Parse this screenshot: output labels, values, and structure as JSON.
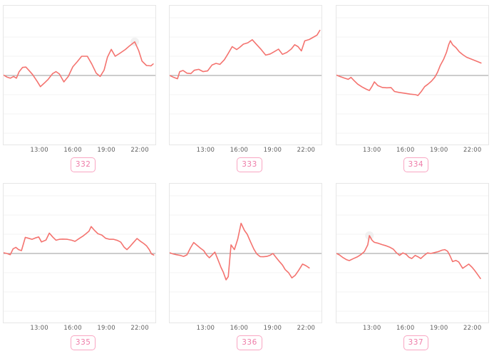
{
  "style": {
    "background": "#ffffff",
    "line_color": "#f4736f",
    "baseline_color": "#999999",
    "grid_color": "#f3f3f3",
    "box_border_color": "#e6e6e6",
    "tick_label_color": "#5f5f5f",
    "badge_border_color": "#f9a6c3",
    "badge_text_color": "#ee7ca8",
    "halo_color": "#e9e9e9"
  },
  "axis": {
    "x_tick_labels": [
      "13:00",
      "16:00",
      "19:00",
      "22:00"
    ],
    "x_tick_hours": [
      13,
      16,
      19,
      22
    ],
    "x_domain_hours": [
      9.8,
      23.4
    ],
    "y_domain_units": [
      -3.59,
      3.63
    ],
    "baseline_value": 0,
    "gridline_units": [
      3,
      2,
      1,
      -1,
      -2,
      -3
    ],
    "grid_on": true,
    "y_tick_labels": []
  },
  "chart_data": [
    {
      "label": "332",
      "type": "line",
      "points": [
        [
          9.8,
          0.02
        ],
        [
          10.1,
          -0.08
        ],
        [
          10.4,
          -0.14
        ],
        [
          10.7,
          -0.05
        ],
        [
          10.95,
          -0.14
        ],
        [
          11.2,
          0.2
        ],
        [
          11.5,
          0.42
        ],
        [
          11.8,
          0.44
        ],
        [
          12.1,
          0.25
        ],
        [
          12.4,
          0.05
        ],
        [
          12.8,
          -0.3
        ],
        [
          13.1,
          -0.58
        ],
        [
          13.4,
          -0.42
        ],
        [
          13.8,
          -0.2
        ],
        [
          14.2,
          0.1
        ],
        [
          14.5,
          0.2
        ],
        [
          14.8,
          0.08
        ],
        [
          15.2,
          -0.33
        ],
        [
          15.6,
          -0.05
        ],
        [
          16.0,
          0.45
        ],
        [
          16.4,
          0.72
        ],
        [
          16.8,
          1.0
        ],
        [
          17.3,
          1.0
        ],
        [
          17.7,
          0.6
        ],
        [
          18.1,
          0.12
        ],
        [
          18.45,
          -0.05
        ],
        [
          18.8,
          0.28
        ],
        [
          19.1,
          0.95
        ],
        [
          19.45,
          1.36
        ],
        [
          19.8,
          1.0
        ],
        [
          20.2,
          1.15
        ],
        [
          20.7,
          1.35
        ],
        [
          21.1,
          1.55
        ],
        [
          21.55,
          1.75
        ],
        [
          21.9,
          1.3
        ],
        [
          22.2,
          0.75
        ],
        [
          22.6,
          0.52
        ],
        [
          23.0,
          0.5
        ],
        [
          23.2,
          0.6
        ]
      ],
      "halo_point": [
        21.55,
        1.75
      ]
    },
    {
      "label": "333",
      "type": "line",
      "points": [
        [
          9.8,
          0.0
        ],
        [
          10.1,
          -0.08
        ],
        [
          10.5,
          -0.17
        ],
        [
          10.7,
          0.2
        ],
        [
          11.0,
          0.26
        ],
        [
          11.35,
          0.12
        ],
        [
          11.7,
          0.1
        ],
        [
          12.0,
          0.27
        ],
        [
          12.4,
          0.32
        ],
        [
          12.8,
          0.2
        ],
        [
          13.2,
          0.24
        ],
        [
          13.6,
          0.55
        ],
        [
          13.95,
          0.63
        ],
        [
          14.3,
          0.58
        ],
        [
          14.7,
          0.82
        ],
        [
          15.0,
          1.1
        ],
        [
          15.4,
          1.5
        ],
        [
          15.8,
          1.35
        ],
        [
          16.1,
          1.48
        ],
        [
          16.4,
          1.63
        ],
        [
          16.8,
          1.7
        ],
        [
          17.2,
          1.86
        ],
        [
          17.6,
          1.6
        ],
        [
          18.0,
          1.35
        ],
        [
          18.4,
          1.06
        ],
        [
          18.8,
          1.12
        ],
        [
          19.2,
          1.25
        ],
        [
          19.55,
          1.37
        ],
        [
          19.9,
          1.1
        ],
        [
          20.3,
          1.2
        ],
        [
          20.7,
          1.38
        ],
        [
          21.0,
          1.6
        ],
        [
          21.3,
          1.5
        ],
        [
          21.6,
          1.28
        ],
        [
          21.9,
          1.8
        ],
        [
          22.3,
          1.87
        ],
        [
          22.7,
          2.0
        ],
        [
          23.0,
          2.1
        ],
        [
          23.25,
          2.35
        ]
      ],
      "halo_point": null
    },
    {
      "label": "334",
      "type": "line",
      "points": [
        [
          9.8,
          0.02
        ],
        [
          10.1,
          -0.05
        ],
        [
          10.5,
          -0.13
        ],
        [
          10.85,
          -0.2
        ],
        [
          11.1,
          -0.1
        ],
        [
          11.35,
          -0.25
        ],
        [
          11.7,
          -0.45
        ],
        [
          12.1,
          -0.6
        ],
        [
          12.5,
          -0.72
        ],
        [
          12.75,
          -0.78
        ],
        [
          13.0,
          -0.55
        ],
        [
          13.2,
          -0.33
        ],
        [
          13.5,
          -0.52
        ],
        [
          13.9,
          -0.62
        ],
        [
          14.3,
          -0.64
        ],
        [
          14.7,
          -0.63
        ],
        [
          15.0,
          -0.83
        ],
        [
          15.4,
          -0.88
        ],
        [
          15.9,
          -0.92
        ],
        [
          16.4,
          -0.97
        ],
        [
          16.9,
          -1.0
        ],
        [
          17.1,
          -1.04
        ],
        [
          17.4,
          -0.83
        ],
        [
          17.7,
          -0.58
        ],
        [
          18.0,
          -0.45
        ],
        [
          18.3,
          -0.3
        ],
        [
          18.6,
          -0.1
        ],
        [
          18.85,
          0.16
        ],
        [
          19.1,
          0.53
        ],
        [
          19.4,
          0.85
        ],
        [
          19.65,
          1.2
        ],
        [
          19.85,
          1.6
        ],
        [
          20.0,
          1.81
        ],
        [
          20.2,
          1.6
        ],
        [
          20.5,
          1.45
        ],
        [
          20.8,
          1.23
        ],
        [
          21.1,
          1.09
        ],
        [
          21.45,
          0.95
        ],
        [
          21.8,
          0.87
        ],
        [
          22.1,
          0.8
        ],
        [
          22.4,
          0.73
        ],
        [
          22.75,
          0.65
        ]
      ],
      "halo_point": null
    },
    {
      "label": "335",
      "type": "line",
      "points": [
        [
          9.8,
          0.04
        ],
        [
          10.1,
          0.0
        ],
        [
          10.4,
          -0.06
        ],
        [
          10.65,
          0.24
        ],
        [
          10.9,
          0.32
        ],
        [
          11.15,
          0.2
        ],
        [
          11.4,
          0.15
        ],
        [
          11.75,
          0.84
        ],
        [
          12.05,
          0.79
        ],
        [
          12.35,
          0.74
        ],
        [
          12.65,
          0.81
        ],
        [
          12.95,
          0.86
        ],
        [
          13.2,
          0.6
        ],
        [
          13.6,
          0.7
        ],
        [
          13.9,
          1.06
        ],
        [
          14.2,
          0.86
        ],
        [
          14.5,
          0.69
        ],
        [
          14.8,
          0.74
        ],
        [
          15.1,
          0.75
        ],
        [
          15.5,
          0.74
        ],
        [
          15.9,
          0.69
        ],
        [
          16.2,
          0.63
        ],
        [
          16.6,
          0.79
        ],
        [
          16.9,
          0.9
        ],
        [
          17.2,
          1.04
        ],
        [
          17.45,
          1.16
        ],
        [
          17.65,
          1.4
        ],
        [
          17.95,
          1.2
        ],
        [
          18.25,
          1.03
        ],
        [
          18.6,
          0.96
        ],
        [
          18.95,
          0.79
        ],
        [
          19.3,
          0.74
        ],
        [
          19.65,
          0.74
        ],
        [
          20.0,
          0.68
        ],
        [
          20.3,
          0.59
        ],
        [
          20.6,
          0.33
        ],
        [
          20.85,
          0.2
        ],
        [
          21.1,
          0.35
        ],
        [
          21.4,
          0.55
        ],
        [
          21.75,
          0.78
        ],
        [
          22.05,
          0.64
        ],
        [
          22.35,
          0.52
        ],
        [
          22.6,
          0.4
        ],
        [
          22.85,
          0.2
        ],
        [
          23.05,
          -0.02
        ],
        [
          23.25,
          -0.08
        ]
      ],
      "halo_point": null
    },
    {
      "label": "336",
      "type": "line",
      "points": [
        [
          9.8,
          0.04
        ],
        [
          10.1,
          -0.02
        ],
        [
          10.4,
          -0.06
        ],
        [
          10.75,
          -0.1
        ],
        [
          11.05,
          -0.15
        ],
        [
          11.35,
          -0.07
        ],
        [
          11.65,
          0.28
        ],
        [
          11.95,
          0.57
        ],
        [
          12.2,
          0.45
        ],
        [
          12.55,
          0.28
        ],
        [
          12.85,
          0.15
        ],
        [
          13.1,
          -0.07
        ],
        [
          13.35,
          -0.22
        ],
        [
          13.6,
          -0.08
        ],
        [
          13.85,
          0.07
        ],
        [
          14.1,
          -0.28
        ],
        [
          14.4,
          -0.72
        ],
        [
          14.6,
          -0.97
        ],
        [
          14.85,
          -1.37
        ],
        [
          15.05,
          -1.2
        ],
        [
          15.3,
          0.45
        ],
        [
          15.6,
          0.2
        ],
        [
          15.9,
          0.75
        ],
        [
          16.2,
          1.57
        ],
        [
          16.5,
          1.2
        ],
        [
          16.75,
          1.0
        ],
        [
          17.05,
          0.6
        ],
        [
          17.35,
          0.22
        ],
        [
          17.6,
          -0.02
        ],
        [
          17.9,
          -0.16
        ],
        [
          18.2,
          -0.17
        ],
        [
          18.5,
          -0.15
        ],
        [
          18.8,
          -0.09
        ],
        [
          19.05,
          0.0
        ],
        [
          19.35,
          -0.22
        ],
        [
          19.6,
          -0.4
        ],
        [
          19.9,
          -0.6
        ],
        [
          20.15,
          -0.84
        ],
        [
          20.45,
          -1.0
        ],
        [
          20.75,
          -1.27
        ],
        [
          21.05,
          -1.13
        ],
        [
          21.35,
          -0.88
        ],
        [
          21.7,
          -0.55
        ],
        [
          22.0,
          -0.63
        ],
        [
          22.3,
          -0.75
        ]
      ],
      "halo_point": null
    },
    {
      "label": "337",
      "type": "line",
      "points": [
        [
          9.8,
          0.0
        ],
        [
          10.05,
          -0.07
        ],
        [
          10.35,
          -0.2
        ],
        [
          10.7,
          -0.32
        ],
        [
          10.95,
          -0.37
        ],
        [
          11.3,
          -0.27
        ],
        [
          11.65,
          -0.18
        ],
        [
          12.0,
          -0.05
        ],
        [
          12.3,
          0.1
        ],
        [
          12.6,
          0.45
        ],
        [
          12.75,
          0.93
        ],
        [
          13.0,
          0.68
        ],
        [
          13.2,
          0.58
        ],
        [
          13.55,
          0.53
        ],
        [
          13.9,
          0.46
        ],
        [
          14.25,
          0.4
        ],
        [
          14.6,
          0.32
        ],
        [
          14.9,
          0.22
        ],
        [
          15.15,
          0.05
        ],
        [
          15.45,
          -0.1
        ],
        [
          15.75,
          0.03
        ],
        [
          16.05,
          -0.05
        ],
        [
          16.3,
          -0.2
        ],
        [
          16.55,
          -0.26
        ],
        [
          16.85,
          -0.1
        ],
        [
          17.1,
          -0.17
        ],
        [
          17.35,
          -0.26
        ],
        [
          17.7,
          -0.08
        ],
        [
          17.95,
          0.03
        ],
        [
          18.25,
          0.0
        ],
        [
          18.6,
          0.05
        ],
        [
          18.95,
          0.1
        ],
        [
          19.25,
          0.17
        ],
        [
          19.5,
          0.2
        ],
        [
          19.75,
          0.12
        ],
        [
          19.95,
          -0.1
        ],
        [
          20.2,
          -0.42
        ],
        [
          20.5,
          -0.36
        ],
        [
          20.75,
          -0.44
        ],
        [
          21.1,
          -0.77
        ],
        [
          21.4,
          -0.65
        ],
        [
          21.65,
          -0.55
        ],
        [
          21.95,
          -0.72
        ],
        [
          22.2,
          -0.9
        ],
        [
          22.45,
          -1.1
        ],
        [
          22.7,
          -1.3
        ]
      ],
      "halo_point": [
        12.75,
        0.93
      ]
    }
  ]
}
